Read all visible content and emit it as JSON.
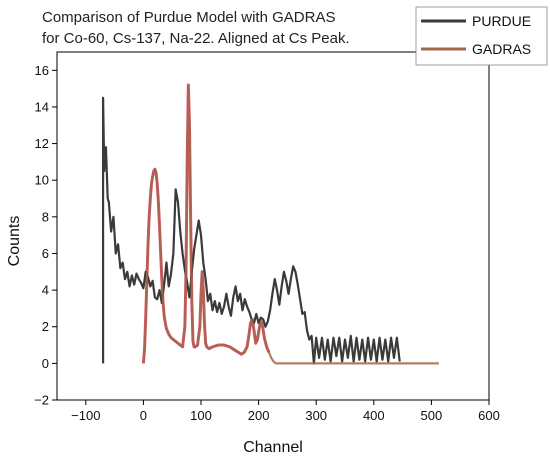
{
  "chart_data": {
    "type": "line",
    "title": "Comparison of Purdue Model with GADRAS",
    "subtitle": "for Co-60, Cs-137, Na-22. Aligned at Cs Peak.",
    "xlabel": "Channel",
    "ylabel": "Counts",
    "xlim": [
      -150,
      600
    ],
    "ylim": [
      -2,
      17
    ],
    "xticks": [
      -100,
      0,
      100,
      200,
      300,
      400,
      500,
      600
    ],
    "yticks": [
      -2,
      0,
      2,
      4,
      6,
      8,
      10,
      12,
      14,
      16
    ],
    "xtick_labels": [
      "−100",
      "0",
      "100",
      "200",
      "300",
      "400",
      "500",
      "600"
    ],
    "ytick_labels": [
      "−2",
      "0",
      "2",
      "4",
      "6",
      "8",
      "10",
      "12",
      "14",
      "16"
    ],
    "grid": false,
    "legend_position": "top-right",
    "series": [
      {
        "name": "PURDUE",
        "color": "#3a3a3a",
        "x": [
          -70,
          -70,
          -68,
          -65,
          -62,
          -60,
          -56,
          -52,
          -48,
          -44,
          -40,
          -36,
          -32,
          -28,
          -24,
          -20,
          -16,
          -12,
          -8,
          -4,
          0,
          4,
          8,
          12,
          16,
          20,
          24,
          28,
          32,
          36,
          40,
          44,
          48,
          52,
          56,
          60,
          64,
          68,
          72,
          76,
          80,
          84,
          88,
          92,
          96,
          100,
          104,
          108,
          112,
          116,
          120,
          124,
          128,
          132,
          136,
          140,
          144,
          148,
          152,
          156,
          160,
          164,
          168,
          172,
          176,
          180,
          184,
          188,
          192,
          196,
          200,
          204,
          208,
          212,
          216,
          220,
          224,
          228,
          232,
          236,
          240,
          244,
          248,
          252,
          256,
          260,
          264,
          268,
          272,
          276,
          280,
          284,
          288,
          292,
          296,
          300,
          305,
          310,
          315,
          320,
          325,
          330,
          335,
          340,
          345,
          350,
          355,
          360,
          365,
          370,
          375,
          380,
          385,
          390,
          395,
          400,
          405,
          410,
          415,
          420,
          425,
          430,
          435,
          440,
          445
        ],
        "y": [
          0,
          14.5,
          10.5,
          11.8,
          9.0,
          8.8,
          7.2,
          8.0,
          6.0,
          6.5,
          5.2,
          5.5,
          4.6,
          5.0,
          4.2,
          4.8,
          4.3,
          4.9,
          4.6,
          4.4,
          4.1,
          5.0,
          4.7,
          4.2,
          4.5,
          3.6,
          3.5,
          4.0,
          3.3,
          4.3,
          5.5,
          4.2,
          4.9,
          6.0,
          9.5,
          8.8,
          7.2,
          6.0,
          5.1,
          4.4,
          3.6,
          5.0,
          6.2,
          7.0,
          7.8,
          7.0,
          5.5,
          4.6,
          3.4,
          3.8,
          2.9,
          3.4,
          2.8,
          3.3,
          2.7,
          3.1,
          3.8,
          3.1,
          2.6,
          3.6,
          4.2,
          3.4,
          3.8,
          2.9,
          3.5,
          3.1,
          2.8,
          2.4,
          2.2,
          2.7,
          2.2,
          2.5,
          2.4,
          2.0,
          2.3,
          2.9,
          3.8,
          4.6,
          4.0,
          3.2,
          4.2,
          5.0,
          4.5,
          3.8,
          4.6,
          5.3,
          5.0,
          4.3,
          3.5,
          2.7,
          2.8,
          1.8,
          1.3,
          1.5,
          0.0,
          1.4,
          0.3,
          1.4,
          0.2,
          1.3,
          0.1,
          1.4,
          0.4,
          1.4,
          0.1,
          1.3,
          0.3,
          1.5,
          0.1,
          1.4,
          0.2,
          1.3,
          0.1,
          1.4,
          0.2,
          1.3,
          0.1,
          1.4,
          0.2,
          1.3,
          0.1,
          1.4,
          0.3,
          1.4,
          0.1
        ]
      },
      {
        "name": "GADRAS",
        "color": "#a0674a",
        "x": [
          0,
          2,
          4,
          6,
          8,
          10,
          12,
          14,
          16,
          18,
          20,
          22,
          24,
          26,
          28,
          30,
          32,
          34,
          36,
          38,
          40,
          44,
          48,
          52,
          56,
          60,
          64,
          68,
          72,
          74,
          76,
          78,
          80,
          82,
          84,
          86,
          88,
          90,
          94,
          98,
          100,
          102,
          104,
          106,
          108,
          110,
          114,
          120,
          130,
          140,
          150,
          160,
          165,
          170,
          175,
          180,
          183,
          186,
          189,
          192,
          195,
          198,
          201,
          204,
          207,
          210,
          214,
          218,
          222,
          226,
          230,
          240,
          260,
          300,
          350,
          400,
          450,
          500,
          513
        ],
        "y": [
          0,
          0.8,
          2.5,
          4.5,
          6.5,
          8.0,
          9.0,
          9.8,
          10.2,
          10.5,
          10.6,
          10.4,
          9.8,
          8.8,
          7.5,
          6.0,
          4.6,
          3.4,
          2.6,
          2.2,
          1.9,
          1.6,
          1.4,
          1.3,
          1.2,
          1.1,
          1.0,
          0.9,
          2.0,
          5.0,
          11.0,
          15.2,
          13.0,
          8.0,
          3.5,
          1.2,
          0.9,
          0.9,
          1.0,
          2.0,
          3.8,
          5.0,
          4.0,
          2.2,
          1.1,
          0.9,
          0.8,
          0.9,
          1.0,
          1.0,
          0.9,
          0.7,
          0.6,
          0.5,
          0.6,
          0.9,
          1.5,
          2.2,
          2.4,
          1.8,
          1.1,
          1.3,
          1.9,
          2.3,
          2.0,
          1.4,
          0.9,
          0.6,
          0.3,
          0.1,
          0.0,
          0.0,
          0.0,
          0.0,
          0.0,
          0.0,
          0.0,
          0.0,
          0.0
        ]
      }
    ],
    "red_overlay": {
      "color": "#e0405a",
      "x": [
        0,
        2,
        4,
        6,
        8,
        10,
        12,
        14,
        16,
        18,
        20,
        22,
        24,
        26,
        28,
        30,
        32,
        34,
        36,
        38,
        40,
        44,
        48,
        52,
        56,
        60,
        64,
        68,
        72,
        74,
        76,
        78,
        80,
        82,
        84,
        86,
        88,
        90,
        94,
        98,
        100,
        102,
        104,
        106,
        108,
        110,
        114,
        120,
        130,
        140,
        150,
        160,
        165,
        170,
        175,
        180,
        183,
        186,
        189,
        192,
        195,
        198,
        201,
        204,
        207,
        210,
        214,
        218
      ],
      "y": [
        0,
        0.8,
        2.5,
        4.5,
        6.5,
        8.0,
        9.0,
        9.8,
        10.2,
        10.5,
        10.6,
        10.4,
        9.8,
        8.8,
        7.5,
        6.0,
        4.6,
        3.4,
        2.6,
        2.2,
        1.9,
        1.6,
        1.4,
        1.3,
        1.2,
        1.1,
        1.0,
        0.9,
        2.0,
        5.0,
        11.0,
        15.2,
        13.0,
        8.0,
        3.5,
        1.2,
        0.9,
        0.9,
        1.0,
        2.0,
        3.8,
        5.0,
        4.0,
        2.2,
        1.1,
        0.9,
        0.8,
        0.9,
        1.0,
        1.0,
        0.9,
        0.7,
        0.6,
        0.5,
        0.6,
        0.9,
        1.5,
        2.2,
        2.4,
        1.8,
        1.1,
        1.3,
        1.9,
        2.3,
        2.0,
        1.4,
        0.9,
        0.6
      ]
    }
  }
}
